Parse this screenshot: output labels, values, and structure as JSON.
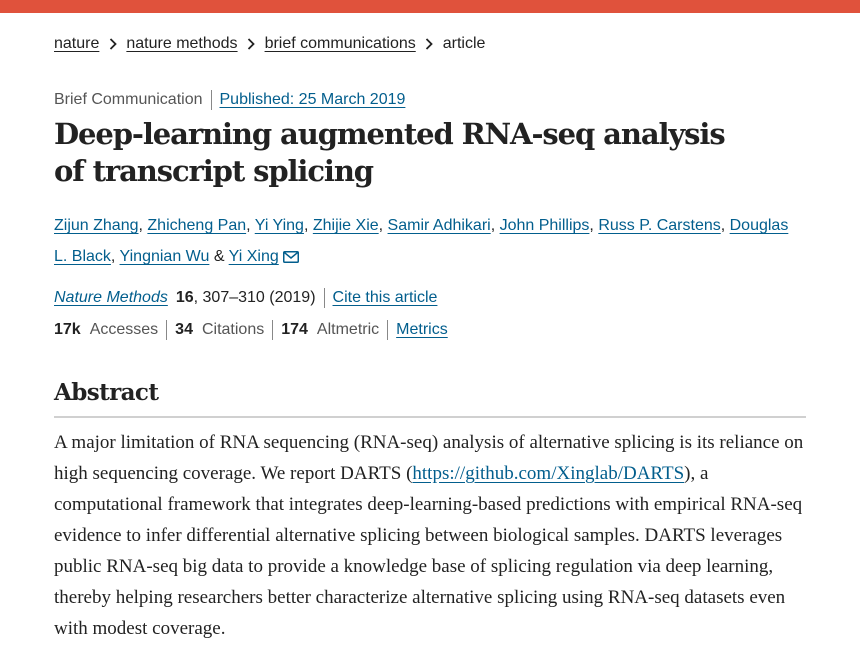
{
  "colors": {
    "accent_bar": "#e0523c",
    "link": "#025e8d",
    "text": "#222222",
    "muted": "#555555"
  },
  "breadcrumb": {
    "items": [
      {
        "label": "nature"
      },
      {
        "label": "nature methods"
      },
      {
        "label": "brief communications"
      }
    ],
    "current": "article",
    "separator_icon": "chevron-right-icon"
  },
  "meta": {
    "article_type": "Brief Communication",
    "published": "Published: 25 March 2019"
  },
  "title": "Deep-learning augmented RNA-seq analysis of transcript splicing",
  "authors": [
    {
      "name": "Zijun Zhang",
      "sep": ", "
    },
    {
      "name": "Zhicheng Pan",
      "sep": ", "
    },
    {
      "name": "Yi Ying",
      "sep": ", "
    },
    {
      "name": "Zhijie Xie",
      "sep": ", "
    },
    {
      "name": "Samir Adhikari",
      "sep": ", "
    },
    {
      "name": "John Phillips",
      "sep": ", "
    },
    {
      "name": "Russ P. Carstens",
      "sep": ", "
    },
    {
      "name": "Douglas L. Black",
      "sep": ", "
    },
    {
      "name": "Yingnian Wu",
      "sep": " & "
    },
    {
      "name": "Yi Xing",
      "sep": ""
    }
  ],
  "corresponding_icon": "mail-icon",
  "citation": {
    "journal": "Nature Methods",
    "volume": "16",
    "pages_year": ", 307–310 (2019)",
    "cite_link": "Cite this article"
  },
  "metrics": {
    "accesses_value": "17k",
    "accesses_label": "Accesses",
    "citations_value": "34",
    "citations_label": "Citations",
    "altmetric_value": "174",
    "altmetric_label": "Altmetric",
    "metrics_link": "Metrics"
  },
  "abstract": {
    "heading": "Abstract",
    "text_before": "A major limitation of RNA sequencing (RNA-seq) analysis of alternative splicing is its reliance on high sequencing coverage. We report DARTS (",
    "link": "https://github.com/Xinglab/DARTS",
    "text_after": "), a computational framework that integrates deep-learning-based predictions with empirical RNA-seq evidence to infer differential alternative splicing between biological samples. DARTS leverages public RNA-seq big data to provide a knowledge base of splicing regulation via deep learning, thereby helping researchers better characterize alternative splicing using RNA-seq datasets even with modest coverage."
  }
}
